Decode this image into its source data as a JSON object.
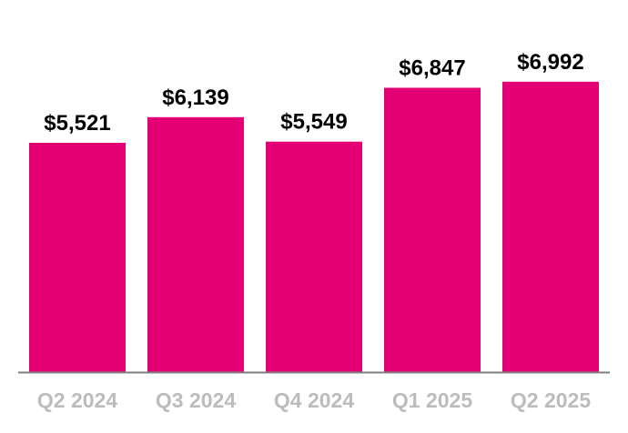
{
  "chart_data": {
    "type": "bar",
    "categories": [
      "Q2 2024",
      "Q3 2024",
      "Q4 2024",
      "Q1 2025",
      "Q2 2025"
    ],
    "values": [
      5521,
      6139,
      5549,
      6847,
      6992
    ],
    "value_labels": [
      "$5,521",
      "$6,139",
      "$5,549",
      "$6,847",
      "$6,992"
    ],
    "title": "",
    "xlabel": "",
    "ylabel": "",
    "ylim": [
      0,
      7500
    ],
    "grid": false,
    "legend": "none",
    "colors": {
      "bar": "#e20074",
      "axis": "#7f7f7f",
      "value_label": "#000000",
      "tick_label": "#bcbcbc"
    }
  }
}
